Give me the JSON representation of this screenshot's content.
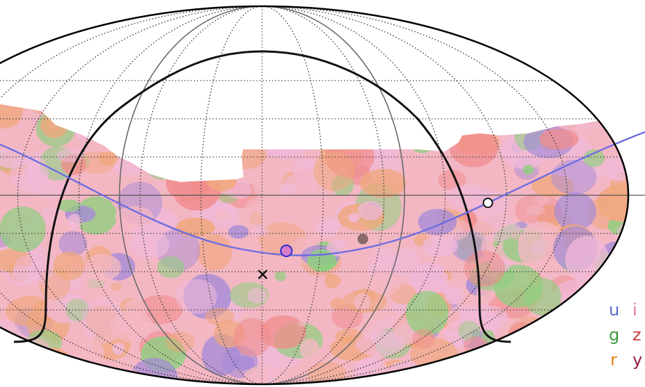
{
  "map": {
    "projection": "mollweide",
    "background": "#ffffff",
    "outline_color": "#000000",
    "graticule_color": "#444444",
    "horizon_color": "#222222",
    "horizon_colors_inner": "#6a6a6a",
    "ecliptic_color": "#6e6ee0",
    "filter_colors": {
      "u": "#a48ad8",
      "g": "#8fcf7f",
      "r": "#f0a77c",
      "i": "#f0b9d8",
      "z": "#f08d8d",
      "y": "#f3b7c3"
    },
    "markers": [
      {
        "name": "moon-marker",
        "fill": "#d87cc8",
        "stroke": "#2b2bd0"
      },
      {
        "name": "planet-marker",
        "fill": "#8a6a6a",
        "stroke": "#7a5a5a"
      },
      {
        "name": "sun-marker",
        "fill": "#ffffff",
        "stroke": "#111111"
      },
      {
        "name": "zenith-marker",
        "symbol": "×",
        "color": "#111111"
      }
    ]
  },
  "legend": {
    "items": [
      {
        "filter": "u",
        "color": "#5b6bd0"
      },
      {
        "filter": "g",
        "color": "#3a9a3a"
      },
      {
        "filter": "r",
        "color": "#e8811a"
      },
      {
        "filter": "i",
        "color": "#e07aa0"
      },
      {
        "filter": "z",
        "color": "#d04040"
      },
      {
        "filter": "y",
        "color": "#902040"
      }
    ]
  }
}
